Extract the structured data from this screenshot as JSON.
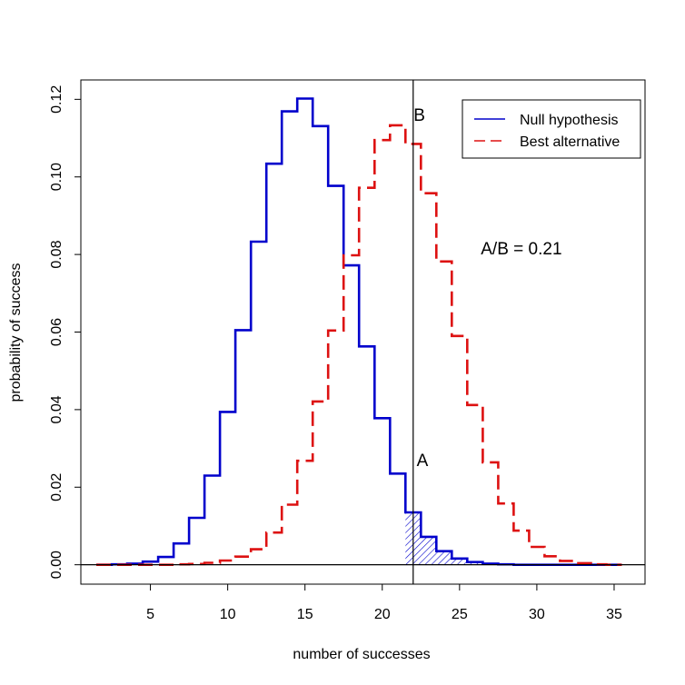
{
  "chart_data": {
    "type": "line",
    "xlabel": "number of successes",
    "ylabel": "probability of success",
    "xlim": [
      0.5,
      37
    ],
    "ylim": [
      -0.005,
      0.125
    ],
    "x_ticks": [
      "5",
      "10",
      "15",
      "20",
      "25",
      "30",
      "35"
    ],
    "y_ticks": [
      "0.00",
      "0.02",
      "0.04",
      "0.06",
      "0.08",
      "0.10",
      "0.12"
    ],
    "threshold_x": 22,
    "x": [
      2,
      3,
      4,
      5,
      6,
      7,
      8,
      9,
      10,
      11,
      12,
      13,
      14,
      15,
      16,
      17,
      18,
      19,
      20,
      21,
      22,
      23,
      24,
      25,
      26,
      27,
      28,
      29,
      30,
      31,
      32,
      33,
      34,
      35
    ],
    "series": [
      {
        "name": "Null hypothesis",
        "color": "#0000cc",
        "style": "solid",
        "values": [
          0.0,
          0.0001,
          0.0003,
          0.0008,
          0.002,
          0.0055,
          0.0121,
          0.023,
          0.0394,
          0.0605,
          0.0833,
          0.1034,
          0.1169,
          0.1202,
          0.1131,
          0.0977,
          0.0772,
          0.0563,
          0.0378,
          0.0235,
          0.0135,
          0.0072,
          0.0035,
          0.0016,
          0.0007,
          0.0003,
          0.0001,
          0.0,
          0.0,
          0.0,
          0.0,
          0.0,
          0.0,
          0.0
        ]
      },
      {
        "name": "Best alternative",
        "color": "#dd1111",
        "style": "dashed",
        "values": [
          0.0,
          0.0,
          0.0,
          0.0,
          0.0,
          0.0001,
          0.0002,
          0.0005,
          0.0011,
          0.0021,
          0.004,
          0.0083,
          0.0155,
          0.0268,
          0.0421,
          0.0604,
          0.0798,
          0.0972,
          0.1095,
          0.1133,
          0.1085,
          0.0958,
          0.0782,
          0.059,
          0.0412,
          0.0264,
          0.0158,
          0.0088,
          0.0046,
          0.0022,
          0.001,
          0.0004,
          0.0001,
          0.0
        ]
      }
    ],
    "annotations": [
      {
        "text": "A",
        "x": 22.6,
        "y": 0.0255
      },
      {
        "text": "B",
        "x": 22.4,
        "y": 0.1145
      },
      {
        "text": "A/B = 0.21",
        "x": 29,
        "y": 0.08
      }
    ],
    "legend_position": "top-right",
    "grid": false
  }
}
